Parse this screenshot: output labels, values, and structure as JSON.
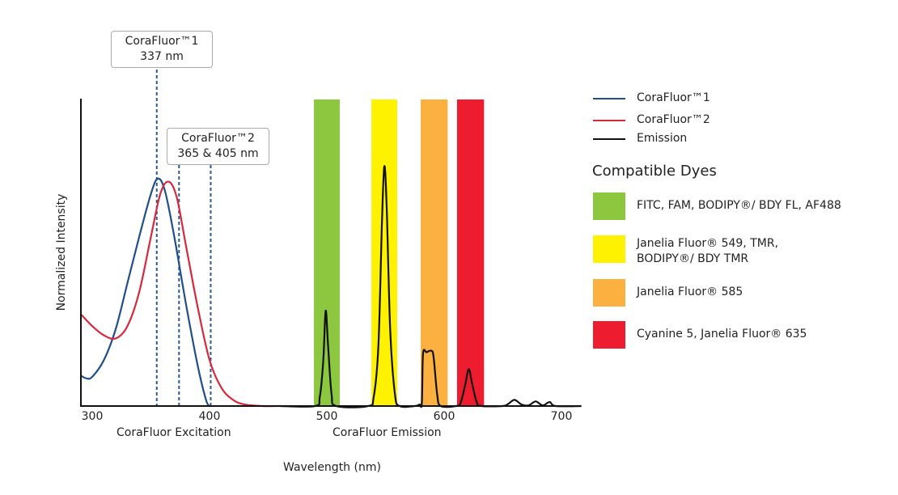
{
  "chart_data": {
    "type": "line",
    "xlabel": "Wavelength (nm)",
    "ylabel": "Normalized Intensity",
    "section_labels": [
      "CoraFluor Excitation",
      "CoraFluor Emission"
    ],
    "xlim": [
      290,
      717
    ],
    "ylim": [
      0,
      1
    ],
    "x_ticks": [
      300,
      400,
      500,
      600,
      700
    ],
    "grid": false,
    "legend_position": "right",
    "series": [
      {
        "name": "CoraFluor™1",
        "color": "#1f4e8c",
        "points": [
          [
            290,
            0.1
          ],
          [
            295,
            0.09
          ],
          [
            300,
            0.095
          ],
          [
            310,
            0.15
          ],
          [
            320,
            0.25
          ],
          [
            330,
            0.4
          ],
          [
            340,
            0.55
          ],
          [
            350,
            0.69
          ],
          [
            356,
            0.74
          ],
          [
            362,
            0.7
          ],
          [
            370,
            0.55
          ],
          [
            380,
            0.33
          ],
          [
            390,
            0.13
          ],
          [
            397,
            0.02
          ],
          [
            400,
            0
          ]
        ]
      },
      {
        "name": "CoraFluor™2",
        "color": "#d8283c",
        "points": [
          [
            290,
            0.3
          ],
          [
            300,
            0.26
          ],
          [
            310,
            0.23
          ],
          [
            320,
            0.22
          ],
          [
            330,
            0.26
          ],
          [
            340,
            0.37
          ],
          [
            350,
            0.55
          ],
          [
            358,
            0.69
          ],
          [
            365,
            0.73
          ],
          [
            372,
            0.68
          ],
          [
            380,
            0.52
          ],
          [
            390,
            0.32
          ],
          [
            400,
            0.15
          ],
          [
            410,
            0.06
          ],
          [
            420,
            0.02
          ],
          [
            430,
            0.005
          ],
          [
            445,
            0
          ],
          [
            460,
            0
          ]
        ]
      },
      {
        "name": "Emission",
        "color": "#111111",
        "points": [
          [
            460,
            0
          ],
          [
            490,
            0
          ],
          [
            494,
            0.03
          ],
          [
            497,
            0.15
          ],
          [
            499,
            0.31
          ],
          [
            501,
            0.2
          ],
          [
            504,
            0.04
          ],
          [
            508,
            0
          ],
          [
            535,
            0
          ],
          [
            540,
            0.03
          ],
          [
            544,
            0.2
          ],
          [
            547,
            0.6
          ],
          [
            549,
            0.78
          ],
          [
            551,
            0.65
          ],
          [
            554,
            0.25
          ],
          [
            558,
            0.04
          ],
          [
            562,
            0
          ],
          [
            575,
            0
          ],
          [
            579,
            0.005
          ],
          [
            581,
            0.01
          ],
          [
            582,
            0.17
          ],
          [
            585,
            0.175
          ],
          [
            589,
            0.18
          ],
          [
            591,
            0.16
          ],
          [
            594,
            0.04
          ],
          [
            597,
            0
          ],
          [
            610,
            0
          ],
          [
            614,
            0.01
          ],
          [
            618,
            0.07
          ],
          [
            621,
            0.12
          ],
          [
            624,
            0.07
          ],
          [
            628,
            0.01
          ],
          [
            632,
            0
          ],
          [
            650,
            0
          ],
          [
            655,
            0.008
          ],
          [
            660,
            0.02
          ],
          [
            666,
            0.005
          ],
          [
            672,
            0.002
          ],
          [
            678,
            0.015
          ],
          [
            684,
            0.002
          ],
          [
            690,
            0.013
          ],
          [
            695,
            0
          ],
          [
            717,
            0
          ]
        ]
      }
    ],
    "excitation_lines": [
      355,
      374,
      401
    ],
    "callouts": [
      {
        "line1": "CoraFluor™1",
        "line2": "337 nm"
      },
      {
        "line1": "CoraFluor™2",
        "line2": "365 & 405 nm"
      }
    ],
    "dye_bands": [
      {
        "range": [
          489,
          511
        ],
        "color": "#8dc63f",
        "label": "FITC, FAM, BODIPY®/ BDY FL, AF488"
      },
      {
        "range": [
          538,
          560
        ],
        "color": "#fff200",
        "label": "Janelia Fluor® 549, TMR,\nBODIPY®/ BDY TMR"
      },
      {
        "range": [
          580,
          603
        ],
        "color": "#fbb040",
        "label": "Janelia Fluor® 585"
      },
      {
        "range": [
          611,
          634
        ],
        "color": "#ed1c2e",
        "label": "Cyanine 5, Janelia Fluor® 635"
      }
    ],
    "dyes_heading": "Compatible Dyes"
  }
}
